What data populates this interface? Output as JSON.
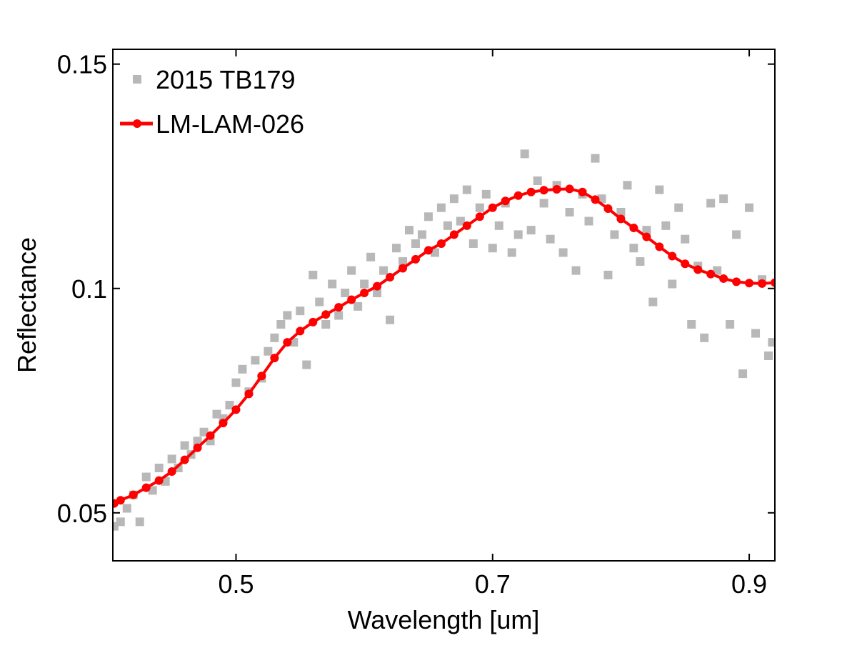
{
  "chart_data": {
    "type": "line",
    "xlabel": "Wavelength [um]",
    "ylabel": "Reflectance",
    "xlim": [
      0.404,
      0.92
    ],
    "ylim": [
      0.0393,
      0.1533
    ],
    "xticks": [
      0.5,
      0.7,
      0.9
    ],
    "yticks": [
      0.05,
      0.1,
      0.15
    ],
    "legend": "upper left",
    "series": [
      {
        "name": "2015 TB179",
        "type": "scatter",
        "color": "#b8b8b8",
        "x": [
          0.405,
          0.41,
          0.415,
          0.42,
          0.425,
          0.43,
          0.435,
          0.44,
          0.445,
          0.45,
          0.455,
          0.46,
          0.465,
          0.47,
          0.475,
          0.48,
          0.485,
          0.49,
          0.495,
          0.5,
          0.505,
          0.51,
          0.515,
          0.52,
          0.525,
          0.53,
          0.535,
          0.54,
          0.545,
          0.55,
          0.555,
          0.56,
          0.565,
          0.57,
          0.575,
          0.58,
          0.585,
          0.59,
          0.595,
          0.6,
          0.605,
          0.61,
          0.615,
          0.62,
          0.625,
          0.63,
          0.635,
          0.64,
          0.645,
          0.65,
          0.655,
          0.66,
          0.665,
          0.67,
          0.675,
          0.68,
          0.685,
          0.69,
          0.695,
          0.7,
          0.705,
          0.71,
          0.715,
          0.72,
          0.725,
          0.73,
          0.735,
          0.74,
          0.745,
          0.75,
          0.755,
          0.76,
          0.765,
          0.77,
          0.775,
          0.78,
          0.785,
          0.79,
          0.795,
          0.8,
          0.805,
          0.81,
          0.815,
          0.82,
          0.825,
          0.83,
          0.835,
          0.84,
          0.845,
          0.85,
          0.855,
          0.86,
          0.865,
          0.87,
          0.875,
          0.88,
          0.885,
          0.89,
          0.895,
          0.9,
          0.905,
          0.91,
          0.915,
          0.918
        ],
        "values": [
          0.047,
          0.048,
          0.051,
          0.054,
          0.048,
          0.058,
          0.055,
          0.06,
          0.057,
          0.062,
          0.06,
          0.065,
          0.063,
          0.066,
          0.068,
          0.066,
          0.072,
          0.071,
          0.074,
          0.079,
          0.082,
          0.077,
          0.084,
          0.08,
          0.086,
          0.089,
          0.092,
          0.094,
          0.088,
          0.095,
          0.083,
          0.103,
          0.097,
          0.092,
          0.101,
          0.094,
          0.099,
          0.104,
          0.096,
          0.101,
          0.107,
          0.099,
          0.104,
          0.093,
          0.109,
          0.106,
          0.113,
          0.11,
          0.112,
          0.116,
          0.108,
          0.118,
          0.114,
          0.12,
          0.115,
          0.122,
          0.11,
          0.118,
          0.121,
          0.109,
          0.114,
          0.119,
          0.108,
          0.112,
          0.13,
          0.113,
          0.124,
          0.119,
          0.111,
          0.123,
          0.108,
          0.117,
          0.104,
          0.121,
          0.115,
          0.129,
          0.12,
          0.103,
          0.112,
          0.117,
          0.123,
          0.109,
          0.106,
          0.113,
          0.097,
          0.122,
          0.114,
          0.101,
          0.118,
          0.111,
          0.092,
          0.105,
          0.089,
          0.119,
          0.104,
          0.12,
          0.092,
          0.112,
          0.081,
          0.118,
          0.09,
          0.102,
          0.085,
          0.088
        ]
      },
      {
        "name": "LM-LAM-026",
        "type": "line",
        "color": "#ff0000",
        "x": [
          0.405,
          0.41,
          0.42,
          0.43,
          0.44,
          0.45,
          0.46,
          0.47,
          0.48,
          0.49,
          0.5,
          0.51,
          0.52,
          0.53,
          0.54,
          0.55,
          0.56,
          0.57,
          0.58,
          0.59,
          0.6,
          0.61,
          0.62,
          0.63,
          0.64,
          0.65,
          0.66,
          0.67,
          0.68,
          0.69,
          0.7,
          0.71,
          0.72,
          0.73,
          0.74,
          0.75,
          0.76,
          0.77,
          0.78,
          0.79,
          0.8,
          0.81,
          0.82,
          0.83,
          0.84,
          0.85,
          0.86,
          0.87,
          0.88,
          0.89,
          0.9,
          0.91,
          0.92
        ],
        "values": [
          0.0521,
          0.0528,
          0.054,
          0.0556,
          0.0572,
          0.0592,
          0.0618,
          0.0645,
          0.0672,
          0.07,
          0.073,
          0.0765,
          0.0805,
          0.0845,
          0.088,
          0.0905,
          0.0925,
          0.0942,
          0.0958,
          0.0975,
          0.099,
          0.1005,
          0.1025,
          0.1045,
          0.1065,
          0.1085,
          0.11,
          0.112,
          0.114,
          0.116,
          0.118,
          0.1195,
          0.1207,
          0.1215,
          0.1219,
          0.1221,
          0.1222,
          0.1215,
          0.1198,
          0.1178,
          0.1155,
          0.1135,
          0.1115,
          0.1093,
          0.1072,
          0.1055,
          0.1042,
          0.1032,
          0.1022,
          0.1015,
          0.1012,
          0.1011,
          0.1013
        ]
      }
    ]
  }
}
